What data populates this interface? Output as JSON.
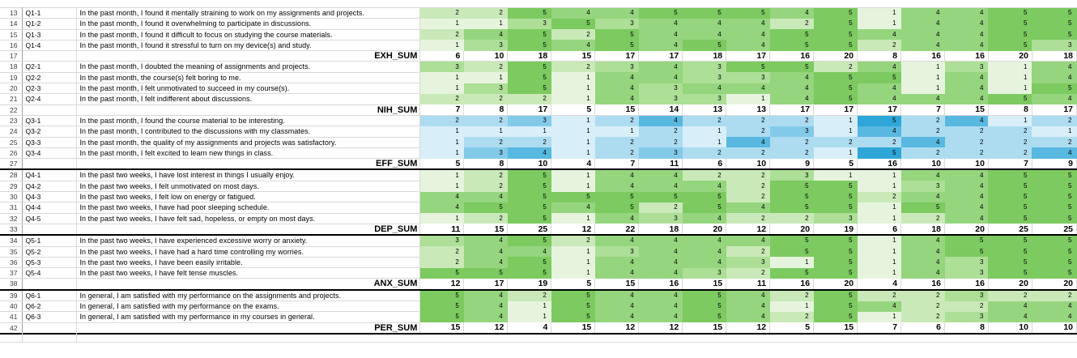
{
  "sheet": {
    "data_column_count": 15,
    "color_scales": {
      "green": {
        "1": "#e6f4de",
        "2": "#c9e9b8",
        "3": "#addf97",
        "4": "#95d57e",
        "5": "#7cca60"
      },
      "blue": {
        "1": "#d8eef9",
        "2": "#addcf1",
        "3": "#83cae9",
        "4": "#58b8e0",
        "5": "#2ea6d8"
      }
    },
    "sum_row_fill": "#ffffff",
    "rows": [
      {
        "type": "q",
        "num": 13,
        "id": "Q1-1",
        "scale": "green",
        "text": "In the past month, I found it mentally straining to work on my assignments and projects.",
        "values": [
          2,
          2,
          5,
          4,
          4,
          5,
          5,
          5,
          4,
          5,
          1,
          4,
          4,
          5,
          5
        ]
      },
      {
        "type": "q",
        "num": 14,
        "id": "Q1-2",
        "scale": "green",
        "text": "In the past month, I found it overwhelming to participate in discussions.",
        "values": [
          1,
          1,
          3,
          5,
          3,
          4,
          4,
          4,
          2,
          5,
          1,
          4,
          4,
          5,
          5
        ]
      },
      {
        "type": "q",
        "num": 15,
        "id": "Q1-3",
        "scale": "green",
        "text": "In the past month, I found it difficult to focus on studying the course materials.",
        "values": [
          2,
          4,
          5,
          2,
          5,
          4,
          4,
          4,
          5,
          5,
          4,
          4,
          4,
          5,
          5
        ]
      },
      {
        "type": "q",
        "num": 16,
        "id": "Q1-4",
        "scale": "green",
        "text": "In the past month, I found it stressful to turn on my device(s) and study.",
        "values": [
          1,
          3,
          5,
          4,
          5,
          4,
          5,
          4,
          5,
          5,
          2,
          4,
          4,
          5,
          3
        ]
      },
      {
        "type": "sum",
        "num": 17,
        "label": "EXH_SUM",
        "thick": false,
        "values": [
          6,
          10,
          18,
          15,
          17,
          17,
          18,
          17,
          16,
          20,
          8,
          16,
          16,
          20,
          18
        ]
      },
      {
        "type": "q",
        "num": 18,
        "id": "Q2-1",
        "scale": "green",
        "text": "In the past month, I doubted the meaning of assignments and projects.",
        "values": [
          3,
          2,
          5,
          2,
          3,
          4,
          3,
          5,
          5,
          2,
          4,
          1,
          3,
          1,
          4
        ]
      },
      {
        "type": "q",
        "num": 19,
        "id": "Q2-2",
        "scale": "green",
        "text": "In the past month, the course(s) felt boring to me.",
        "values": [
          1,
          1,
          5,
          1,
          4,
          4,
          3,
          3,
          4,
          5,
          5,
          1,
          4,
          1,
          4
        ]
      },
      {
        "type": "q",
        "num": 20,
        "id": "Q2-3",
        "scale": "green",
        "text": "In the past month, I felt unmotivated to succeed in my course(s).",
        "values": [
          1,
          3,
          5,
          1,
          4,
          3,
          4,
          4,
          4,
          5,
          4,
          1,
          4,
          1,
          5
        ]
      },
      {
        "type": "q",
        "num": 21,
        "id": "Q2-4",
        "scale": "green",
        "text": "In the past month, I felt indifferent about discussions.",
        "values": [
          2,
          2,
          2,
          1,
          4,
          3,
          3,
          1,
          4,
          5,
          4,
          4,
          4,
          5,
          4
        ]
      },
      {
        "type": "sum",
        "num": 22,
        "label": "NIH_SUM",
        "thick": false,
        "values": [
          7,
          8,
          17,
          5,
          15,
          14,
          13,
          13,
          17,
          17,
          17,
          7,
          15,
          8,
          17
        ]
      },
      {
        "type": "q",
        "num": 23,
        "id": "Q3-1",
        "scale": "blue",
        "text": "In the past month, I found the course material to be interesting.",
        "values": [
          2,
          2,
          3,
          1,
          2,
          4,
          2,
          2,
          2,
          1,
          5,
          2,
          4,
          1,
          2
        ]
      },
      {
        "type": "q",
        "num": 24,
        "id": "Q3-2",
        "scale": "blue",
        "text": "In the past month, I contributed to the discussions with my classmates.",
        "values": [
          1,
          1,
          1,
          1,
          1,
          2,
          1,
          2,
          3,
          1,
          4,
          2,
          2,
          2,
          1
        ]
      },
      {
        "type": "q",
        "num": 25,
        "id": "Q3-3",
        "scale": "blue",
        "text": "In the past month, the quality of my assignments and projects was satisfactory.",
        "values": [
          1,
          2,
          2,
          1,
          2,
          2,
          1,
          4,
          2,
          2,
          2,
          4,
          2,
          2,
          2
        ]
      },
      {
        "type": "q",
        "num": 26,
        "id": "Q3-4",
        "scale": "blue",
        "text": "In the past month, I felt excited to learn new things in class.",
        "values": [
          1,
          3,
          4,
          1,
          2,
          3,
          2,
          2,
          2,
          1,
          5,
          2,
          2,
          2,
          4
        ]
      },
      {
        "type": "sum",
        "num": 27,
        "label": "EFF_SUM",
        "thick": true,
        "values": [
          5,
          8,
          10,
          4,
          7,
          11,
          6,
          10,
          9,
          5,
          16,
          10,
          10,
          7,
          9
        ]
      },
      {
        "type": "q",
        "num": 28,
        "id": "Q4-1",
        "scale": "green",
        "text": "In the past two weeks, I have lost interest in things I usually enjoy.",
        "values": [
          1,
          2,
          5,
          1,
          4,
          4,
          2,
          2,
          3,
          1,
          1,
          4,
          4,
          5,
          5
        ]
      },
      {
        "type": "q",
        "num": 29,
        "id": "Q4-2",
        "scale": "green",
        "text": "In the past two weeks, I felt unmotivated on most days.",
        "values": [
          1,
          2,
          5,
          1,
          4,
          4,
          4,
          2,
          5,
          5,
          1,
          3,
          4,
          5,
          5
        ]
      },
      {
        "type": "q",
        "num": 30,
        "id": "Q4-3",
        "scale": "green",
        "text": "In the past two weeks, I felt low on energy or fatigued.",
        "values": [
          4,
          4,
          5,
          5,
          5,
          5,
          5,
          2,
          5,
          5,
          2,
          4,
          4,
          5,
          5
        ]
      },
      {
        "type": "q",
        "num": 31,
        "id": "Q4-4",
        "scale": "green",
        "text": "In the past two weeks, I have had poor sleeping schedule.",
        "values": [
          4,
          5,
          5,
          4,
          5,
          2,
          5,
          4,
          5,
          5,
          1,
          5,
          4,
          5,
          5
        ]
      },
      {
        "type": "q",
        "num": 32,
        "id": "Q4-5",
        "scale": "green",
        "text": "In the past two weeks, I have felt sad, hopeless, or empty on most days.",
        "values": [
          1,
          2,
          5,
          1,
          4,
          3,
          4,
          2,
          2,
          3,
          1,
          2,
          4,
          5,
          5
        ]
      },
      {
        "type": "sum",
        "num": 33,
        "label": "DEP_SUM",
        "thick": true,
        "values": [
          11,
          15,
          25,
          12,
          22,
          18,
          20,
          12,
          20,
          19,
          6,
          18,
          20,
          25,
          25
        ]
      },
      {
        "type": "q",
        "num": 34,
        "id": "Q5-1",
        "scale": "green",
        "text": "In the past two weeks, I have experienced excessive worry or anxiety.",
        "values": [
          3,
          4,
          5,
          2,
          4,
          4,
          4,
          4,
          5,
          5,
          1,
          4,
          5,
          5,
          5
        ]
      },
      {
        "type": "q",
        "num": 35,
        "id": "Q5-2",
        "scale": "green",
        "text": "In the past two weeks, I have had a hard time controlling my worries.",
        "values": [
          2,
          4,
          4,
          1,
          3,
          4,
          4,
          2,
          5,
          5,
          1,
          4,
          5,
          5,
          5
        ]
      },
      {
        "type": "q",
        "num": 36,
        "id": "Q5-3",
        "scale": "green",
        "text": "In the past two weeks, I have been easily irritable.",
        "values": [
          2,
          4,
          5,
          1,
          4,
          4,
          4,
          3,
          1,
          5,
          1,
          4,
          3,
          5,
          5
        ]
      },
      {
        "type": "q",
        "num": 37,
        "id": "Q5-4",
        "scale": "green",
        "text": "In the past two weeks, I have felt tense muscles.",
        "values": [
          5,
          5,
          5,
          1,
          4,
          4,
          3,
          2,
          5,
          5,
          1,
          4,
          3,
          5,
          5
        ]
      },
      {
        "type": "sum",
        "num": 38,
        "label": "ANX_SUM",
        "thick": true,
        "values": [
          12,
          17,
          19,
          5,
          15,
          16,
          15,
          11,
          16,
          20,
          4,
          16,
          16,
          20,
          20
        ]
      },
      {
        "type": "q",
        "num": 39,
        "id": "Q6-1",
        "scale": "green",
        "text": "In general, I am satisfied with my performance on the assignments and projects.",
        "values": [
          5,
          4,
          2,
          5,
          4,
          4,
          5,
          4,
          2,
          5,
          2,
          2,
          3,
          2,
          2
        ]
      },
      {
        "type": "q",
        "num": 40,
        "id": "Q6-2",
        "scale": "green",
        "text": "In general, I am satisfied with my performance on the exams.",
        "values": [
          5,
          4,
          1,
          5,
          4,
          4,
          5,
          4,
          1,
          5,
          4,
          2,
          2,
          4,
          4
        ]
      },
      {
        "type": "q",
        "num": 41,
        "id": "Q6-3",
        "scale": "green",
        "text": "In general, I am satisfied with my performance in my courses in general.",
        "values": [
          5,
          4,
          1,
          5,
          4,
          4,
          5,
          4,
          2,
          5,
          1,
          2,
          3,
          4,
          4
        ]
      },
      {
        "type": "sum",
        "num": 42,
        "label": "PER_SUM",
        "thick": true,
        "values": [
          15,
          12,
          4,
          15,
          12,
          12,
          15,
          12,
          5,
          15,
          7,
          6,
          8,
          10,
          10
        ]
      }
    ]
  }
}
